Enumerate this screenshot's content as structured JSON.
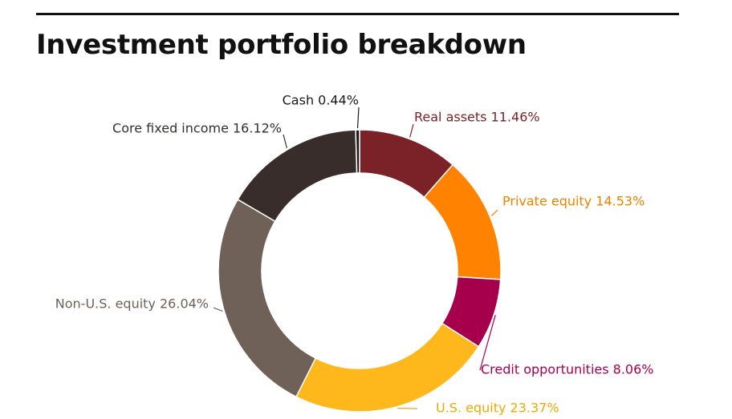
{
  "chart_data": {
    "type": "pie",
    "title": "Investment portfolio breakdown",
    "slices": [
      {
        "label": "Real assets",
        "value": 11.46,
        "display": "Real assets 11.46%",
        "color": "#7b2228",
        "label_color": "#7b2228"
      },
      {
        "label": "Private equity",
        "value": 14.53,
        "display": "Private equity 14.53%",
        "color": "#ff8200",
        "label_color": "#f08000"
      },
      {
        "label": "Credit opportunities",
        "value": 8.06,
        "display": "Credit opportunities 8.06%",
        "color": "#a6004d",
        "label_color": "#a6004d"
      },
      {
        "label": "U.S. equity",
        "value": 23.37,
        "display": "U.S. equity 23.37%",
        "color": "#ffb81c",
        "label_color": "#f0a800"
      },
      {
        "label": "Non-U.S. equity",
        "value": 26.04,
        "display": "Non-U.S. equity 26.04%",
        "color": "#6f6158",
        "label_color": "#6f6158"
      },
      {
        "label": "Core fixed income",
        "value": 16.12,
        "display": "Core fixed income 16.12%",
        "color": "#382d2b",
        "label_color": "#382d2b"
      },
      {
        "label": "Cash",
        "value": 0.44,
        "display": "Cash 0.44%",
        "color": "#1a1a1a",
        "label_color": "#1a1a1a"
      }
    ]
  }
}
